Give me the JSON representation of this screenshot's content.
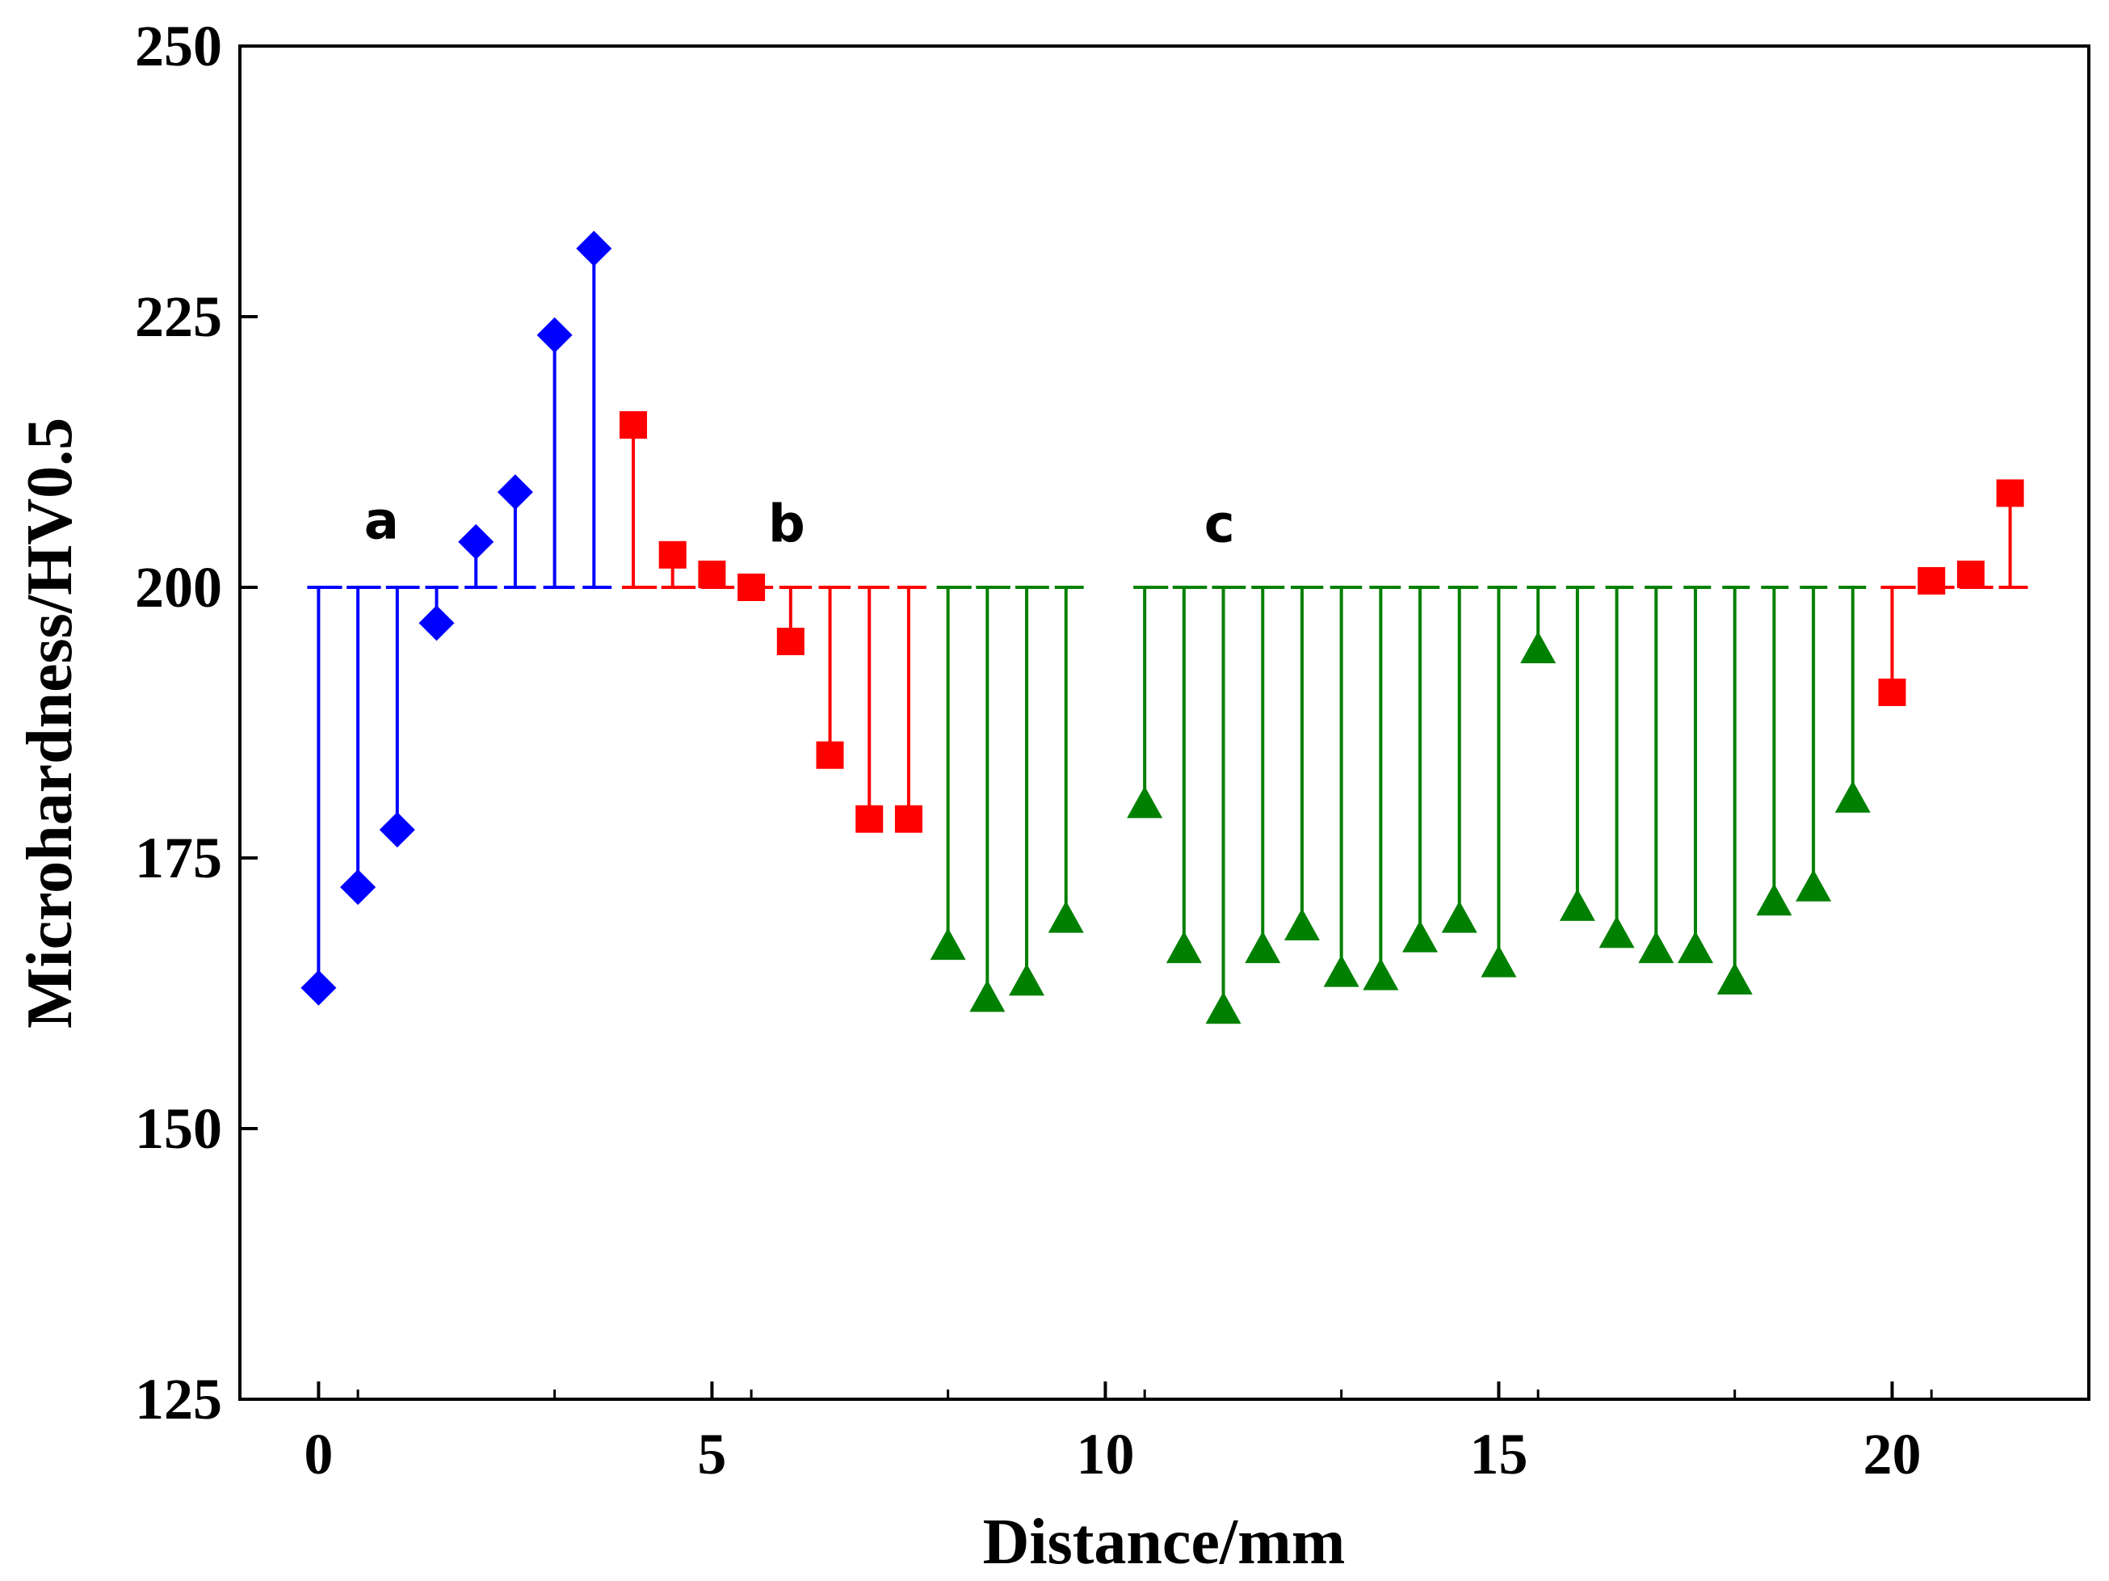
{
  "chart_data": {
    "type": "stem",
    "title": "",
    "xlabel": "Distance/mm",
    "ylabel": "Microhardness/HV0.5",
    "xlim": [
      -1,
      22.5
    ],
    "ylim": [
      125,
      250
    ],
    "baseline": 200,
    "xticks": [
      0,
      5,
      10,
      15,
      20
    ],
    "yticks": [
      125,
      150,
      175,
      200,
      225,
      250
    ],
    "grid": false,
    "legend": "none",
    "series": [
      {
        "name": "a",
        "marker": "diamond",
        "color": "#0000ff",
        "x": [
          0,
          0.5,
          1,
          1.5,
          2,
          2.5,
          3,
          3.5
        ],
        "y": [
          163,
          172.3,
          177.6,
          196.7,
          204.2,
          208.8,
          223.3,
          231.3
        ]
      },
      {
        "name": "b",
        "marker": "square",
        "color": "#ff0000",
        "x": [
          4,
          4.5,
          5,
          5.5,
          6,
          6.5,
          7,
          7.5,
          20,
          20.5,
          21,
          21.5
        ],
        "y": [
          215,
          203,
          201.2,
          200,
          195,
          184.5,
          178.6,
          178.6,
          190.3,
          200.6,
          201.2,
          208.7
        ]
      },
      {
        "name": "c",
        "marker": "triangle",
        "color": "#008000",
        "x": [
          8,
          8.5,
          9,
          9.5,
          10.5,
          11,
          11.5,
          12,
          12.5,
          13,
          13.5,
          14,
          14.5,
          15,
          15.5,
          16,
          16.5,
          17,
          17.5,
          18,
          18.5,
          19,
          19.5
        ],
        "y": [
          166.9,
          162.1,
          163.6,
          169.4,
          180,
          166.6,
          161,
          166.6,
          168.7,
          164.4,
          164.1,
          167.6,
          169.4,
          165.3,
          194.3,
          170.5,
          168,
          166.6,
          166.6,
          163.7,
          171,
          172.3,
          180.5
        ]
      }
    ],
    "annotations": [
      {
        "text": "a",
        "x": 0.8,
        "y": 204.5
      },
      {
        "text": "b",
        "x": 5.95,
        "y": 204.2
      },
      {
        "text": "c",
        "x": 11.45,
        "y": 204.2
      }
    ]
  }
}
